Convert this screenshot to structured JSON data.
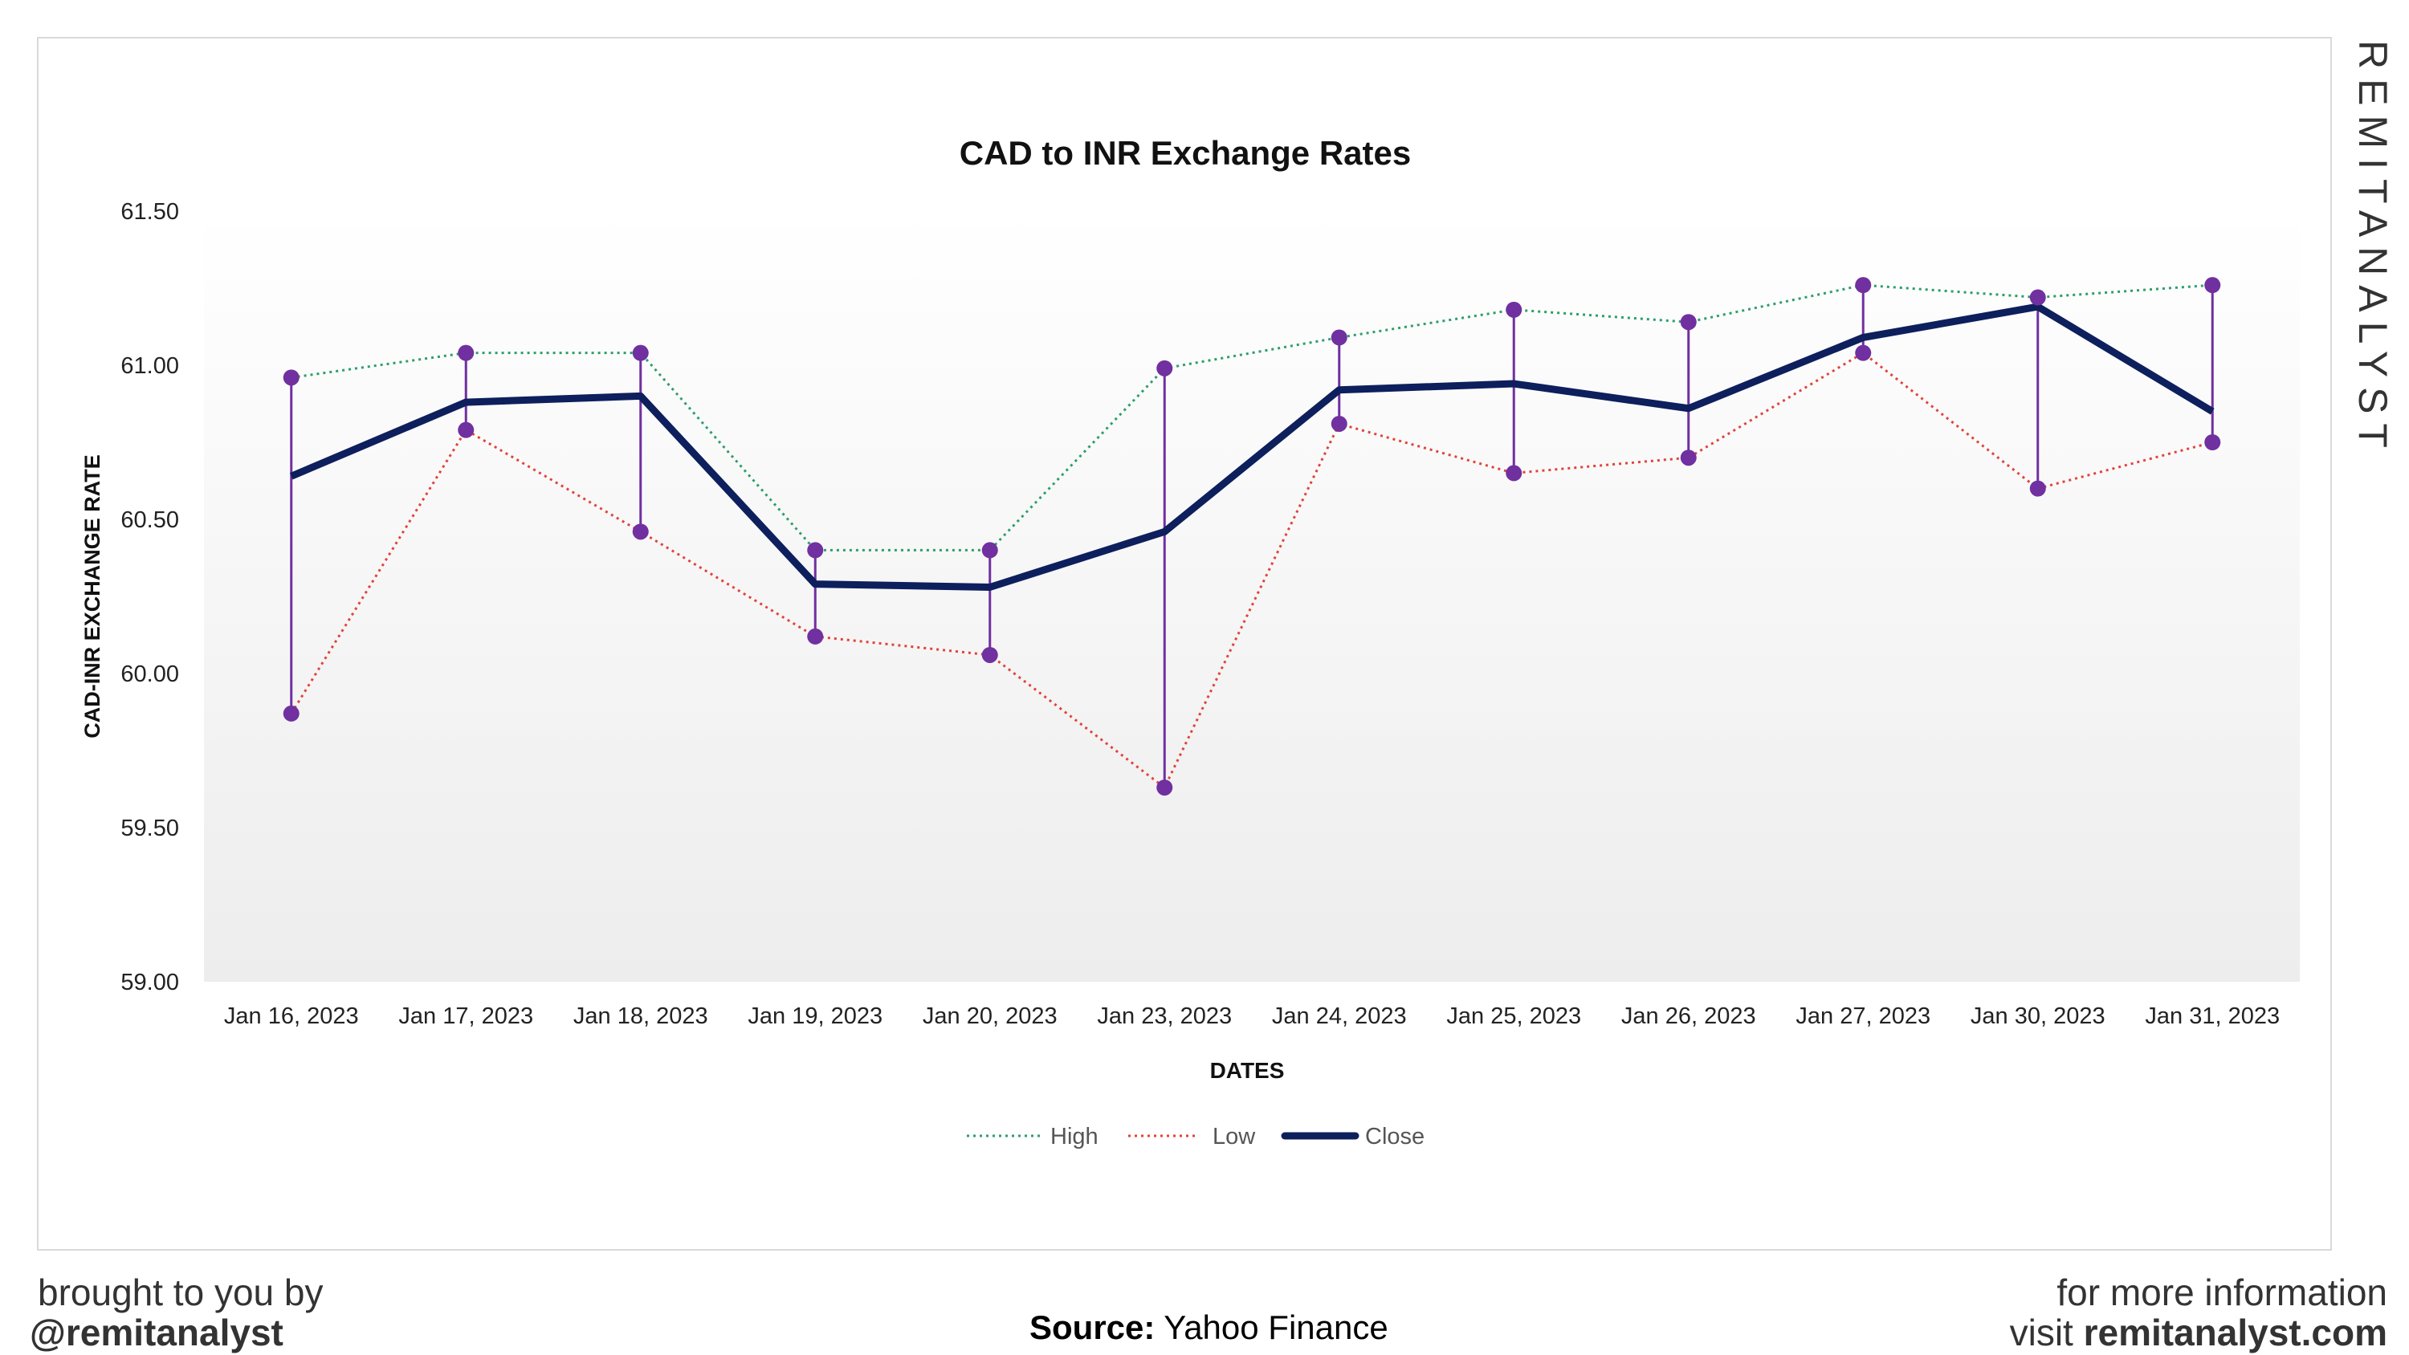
{
  "chart_data": {
    "type": "line",
    "title": "CAD to INR Exchange Rates",
    "xlabel": "DATES",
    "ylabel": "CAD-INR EXCHANGE RATE",
    "categories": [
      "Jan 16, 2023",
      "Jan 17, 2023",
      "Jan 18, 2023",
      "Jan 19, 2023",
      "Jan 20, 2023",
      "Jan 23, 2023",
      "Jan 24, 2023",
      "Jan 25, 2023",
      "Jan 26, 2023",
      "Jan 27, 2023",
      "Jan 30, 2023",
      "Jan 31, 2023"
    ],
    "ylim": [
      59.0,
      61.5
    ],
    "yticks": [
      "59.00",
      "59.50",
      "60.00",
      "60.50",
      "61.00",
      "61.50"
    ],
    "grid": false,
    "legend_position": "bottom",
    "series": [
      {
        "name": "High",
        "style": "dotted",
        "color": "#2e9e6b",
        "values": [
          60.96,
          61.04,
          61.04,
          60.4,
          60.4,
          60.99,
          61.09,
          61.18,
          61.14,
          61.26,
          61.22,
          61.26
        ]
      },
      {
        "name": "Low",
        "style": "dotted",
        "color": "#e0443a",
        "values": [
          59.87,
          60.79,
          60.46,
          60.12,
          60.06,
          59.63,
          60.81,
          60.65,
          60.7,
          61.04,
          60.6,
          60.75
        ]
      },
      {
        "name": "Close",
        "style": "solid",
        "color": "#0d1f5c",
        "values": [
          60.64,
          60.88,
          60.9,
          60.29,
          60.28,
          60.46,
          60.92,
          60.94,
          60.86,
          61.09,
          61.19,
          60.85
        ]
      }
    ],
    "marker_color": "#7030a0"
  },
  "footer": {
    "left_line1": "brought to you by",
    "left_line2": "@remitanalyst",
    "source_label": "Source:",
    "source_value": "Yahoo Finance",
    "right_line1": "for more information",
    "right_line2_prefix": "visit",
    "right_line2_site": "remitanalyst.com"
  },
  "brand": {
    "vertical_text": "REMITANALYST"
  }
}
